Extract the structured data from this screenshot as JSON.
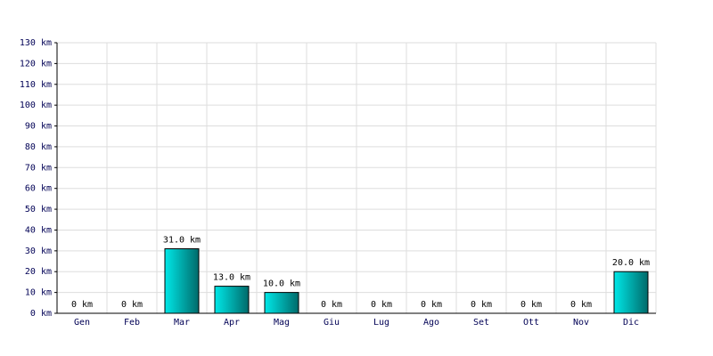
{
  "chart_data": {
    "type": "bar",
    "categories": [
      "Gen",
      "Feb",
      "Mar",
      "Apr",
      "Mag",
      "Giu",
      "Lug",
      "Ago",
      "Set",
      "Ott",
      "Nov",
      "Dic"
    ],
    "values": [
      0,
      0,
      31,
      13,
      10,
      0,
      0,
      0,
      0,
      0,
      0,
      20
    ],
    "value_labels": [
      "0 km",
      "0 km",
      "31.0 km",
      "13.0 km",
      "10.0 km",
      "0 km",
      "0 km",
      "0 km",
      "0 km",
      "0 km",
      "0 km",
      "20.0 km"
    ],
    "color": "#00e8e8",
    "ylim": [
      0,
      130
    ],
    "yticks": [
      {
        "value": 0,
        "label": "0 km"
      },
      {
        "value": 10,
        "label": "10 km"
      },
      {
        "value": 20,
        "label": "20 km"
      },
      {
        "value": 30,
        "label": "30 km"
      },
      {
        "value": 40,
        "label": "40 km"
      },
      {
        "value": 50,
        "label": "50 km"
      },
      {
        "value": 60,
        "label": "60 km"
      },
      {
        "value": 70,
        "label": "70 km"
      },
      {
        "value": 80,
        "label": "80 km"
      },
      {
        "value": 90,
        "label": "90 km"
      },
      {
        "value": 100,
        "label": "100 km"
      },
      {
        "value": 110,
        "label": "110 km"
      },
      {
        "value": 120,
        "label": "120 km"
      },
      {
        "value": 130,
        "label": "130 km"
      }
    ],
    "grid": true
  }
}
